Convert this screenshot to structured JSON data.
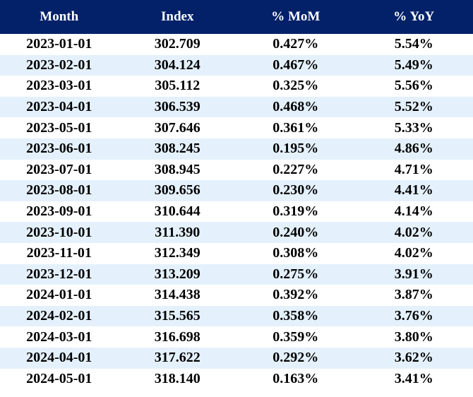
{
  "colors": {
    "header_bg": "#022169",
    "header_text": "#ffffff",
    "stripe_bg": "#e4f1fc",
    "row_bg": "#ffffff",
    "cell_text": "#000000"
  },
  "chart_data": {
    "type": "table",
    "title": "",
    "columns": [
      "Month",
      "Index",
      "% MoM",
      "% YoY"
    ],
    "rows": [
      [
        "2023-01-01",
        "302.709",
        "0.427%",
        "5.54%"
      ],
      [
        "2023-02-01",
        "304.124",
        "0.467%",
        "5.49%"
      ],
      [
        "2023-03-01",
        "305.112",
        "0.325%",
        "5.56%"
      ],
      [
        "2023-04-01",
        "306.539",
        "0.468%",
        "5.52%"
      ],
      [
        "2023-05-01",
        "307.646",
        "0.361%",
        "5.33%"
      ],
      [
        "2023-06-01",
        "308.245",
        "0.195%",
        "4.86%"
      ],
      [
        "2023-07-01",
        "308.945",
        "0.227%",
        "4.71%"
      ],
      [
        "2023-08-01",
        "309.656",
        "0.230%",
        "4.41%"
      ],
      [
        "2023-09-01",
        "310.644",
        "0.319%",
        "4.14%"
      ],
      [
        "2023-10-01",
        "311.390",
        "0.240%",
        "4.02%"
      ],
      [
        "2023-11-01",
        "312.349",
        "0.308%",
        "4.02%"
      ],
      [
        "2023-12-01",
        "313.209",
        "0.275%",
        "3.91%"
      ],
      [
        "2024-01-01",
        "314.438",
        "0.392%",
        "3.87%"
      ],
      [
        "2024-02-01",
        "315.565",
        "0.358%",
        "3.76%"
      ],
      [
        "2024-03-01",
        "316.698",
        "0.359%",
        "3.80%"
      ],
      [
        "2024-04-01",
        "317.622",
        "0.292%",
        "3.62%"
      ],
      [
        "2024-05-01",
        "318.140",
        "0.163%",
        "3.41%"
      ]
    ]
  }
}
